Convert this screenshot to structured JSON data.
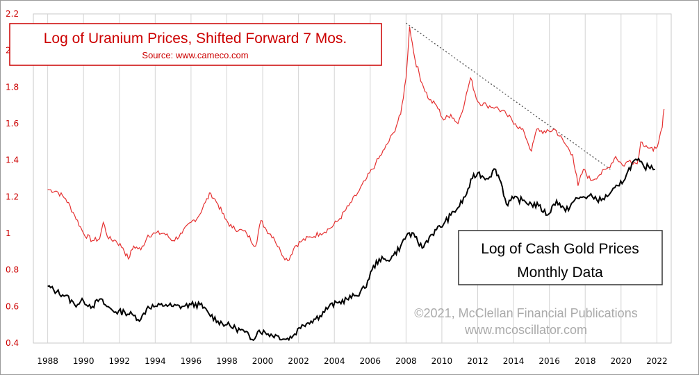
{
  "chart_data": {
    "type": "line",
    "title_top": "Log of Uranium Prices, Shifted Forward 7 Mos.",
    "subtitle_top": "Source: www.cameco.com",
    "box2_line1": "Log of Cash Gold Prices",
    "box2_line2": "Monthly Data",
    "copyright_line1": "©2021, McClellan Financial Publications",
    "copyright_line2": "www.mcoscillator.com",
    "x_ticks": [
      "1988",
      "1990",
      "1992",
      "1994",
      "1996",
      "1998",
      "2000",
      "2002",
      "2004",
      "2006",
      "2008",
      "2010",
      "2012",
      "2014",
      "2016",
      "2018",
      "2020",
      "2022"
    ],
    "y_ticks": [
      "0.4",
      "0.6",
      "0.8",
      "1",
      "1.2",
      "1.4",
      "1.6",
      "1.8",
      "2",
      "2.2"
    ],
    "xlim": [
      1987.2,
      2022.8
    ],
    "ylim": [
      0.4,
      2.2
    ],
    "grid": "vertical",
    "colors": {
      "uranium": "#e53030",
      "gold": "#000000",
      "axis_labels": "#cc0000",
      "trendline": "#555555"
    },
    "series": [
      {
        "key": "uranium",
        "values": [
          [
            1988.0,
            1.24
          ],
          [
            1988.5,
            1.23
          ],
          [
            1989.0,
            1.19
          ],
          [
            1989.5,
            1.1
          ],
          [
            1990.0,
            1.0
          ],
          [
            1990.5,
            0.96
          ],
          [
            1990.9,
            0.97
          ],
          [
            1991.1,
            1.06
          ],
          [
            1991.4,
            0.97
          ],
          [
            1991.8,
            0.96
          ],
          [
            1992.2,
            0.92
          ],
          [
            1992.5,
            0.86
          ],
          [
            1992.8,
            0.93
          ],
          [
            1993.2,
            0.91
          ],
          [
            1993.6,
            0.99
          ],
          [
            1994.0,
            1.0
          ],
          [
            1994.5,
            1.0
          ],
          [
            1995.0,
            0.96
          ],
          [
            1995.5,
            1.0
          ],
          [
            1996.0,
            1.06
          ],
          [
            1996.4,
            1.09
          ],
          [
            1996.8,
            1.17
          ],
          [
            1997.1,
            1.22
          ],
          [
            1997.5,
            1.16
          ],
          [
            1997.9,
            1.08
          ],
          [
            1998.3,
            1.03
          ],
          [
            1998.7,
            1.02
          ],
          [
            1999.1,
            1.0
          ],
          [
            1999.6,
            0.93
          ],
          [
            1999.9,
            1.07
          ],
          [
            2000.2,
            1.02
          ],
          [
            2000.6,
            0.98
          ],
          [
            2001.0,
            0.9
          ],
          [
            2001.4,
            0.85
          ],
          [
            2001.8,
            0.93
          ],
          [
            2002.2,
            0.96
          ],
          [
            2002.7,
            0.98
          ],
          [
            2003.2,
            1.0
          ],
          [
            2003.8,
            1.03
          ],
          [
            2004.3,
            1.08
          ],
          [
            2004.8,
            1.15
          ],
          [
            2005.3,
            1.22
          ],
          [
            2005.8,
            1.3
          ],
          [
            2006.3,
            1.38
          ],
          [
            2006.8,
            1.46
          ],
          [
            2007.3,
            1.55
          ],
          [
            2007.7,
            1.65
          ],
          [
            2008.0,
            1.85
          ],
          [
            2008.2,
            2.13
          ],
          [
            2008.5,
            1.95
          ],
          [
            2008.9,
            1.82
          ],
          [
            2009.3,
            1.73
          ],
          [
            2009.7,
            1.7
          ],
          [
            2010.1,
            1.62
          ],
          [
            2010.5,
            1.65
          ],
          [
            2010.9,
            1.6
          ],
          [
            2011.3,
            1.73
          ],
          [
            2011.6,
            1.85
          ],
          [
            2012.0,
            1.72
          ],
          [
            2012.5,
            1.7
          ],
          [
            2013.0,
            1.69
          ],
          [
            2013.6,
            1.65
          ],
          [
            2014.1,
            1.6
          ],
          [
            2014.6,
            1.55
          ],
          [
            2015.0,
            1.45
          ],
          [
            2015.3,
            1.57
          ],
          [
            2015.8,
            1.55
          ],
          [
            2016.3,
            1.57
          ],
          [
            2016.8,
            1.5
          ],
          [
            2017.3,
            1.43
          ],
          [
            2017.6,
            1.26
          ],
          [
            2017.9,
            1.35
          ],
          [
            2018.3,
            1.29
          ],
          [
            2018.8,
            1.32
          ],
          [
            2019.3,
            1.36
          ],
          [
            2019.7,
            1.42
          ],
          [
            2020.1,
            1.37
          ],
          [
            2020.5,
            1.4
          ],
          [
            2020.9,
            1.38
          ],
          [
            2021.1,
            1.5
          ],
          [
            2021.4,
            1.48
          ],
          [
            2021.8,
            1.45
          ],
          [
            2022.1,
            1.5
          ],
          [
            2022.3,
            1.58
          ],
          [
            2022.4,
            1.68
          ]
        ]
      },
      {
        "key": "gold",
        "values": [
          [
            1988.0,
            0.71
          ],
          [
            1988.5,
            0.68
          ],
          [
            1989.0,
            0.66
          ],
          [
            1989.5,
            0.61
          ],
          [
            1990.0,
            0.63
          ],
          [
            1990.5,
            0.6
          ],
          [
            1990.9,
            0.64
          ],
          [
            1991.3,
            0.6
          ],
          [
            1991.8,
            0.57
          ],
          [
            1992.3,
            0.57
          ],
          [
            1992.8,
            0.55
          ],
          [
            1993.2,
            0.53
          ],
          [
            1993.6,
            0.6
          ],
          [
            1994.1,
            0.6
          ],
          [
            1994.6,
            0.61
          ],
          [
            1995.0,
            0.6
          ],
          [
            1995.5,
            0.6
          ],
          [
            1996.0,
            0.61
          ],
          [
            1996.5,
            0.61
          ],
          [
            1997.0,
            0.56
          ],
          [
            1997.5,
            0.52
          ],
          [
            1998.0,
            0.5
          ],
          [
            1998.5,
            0.48
          ],
          [
            1999.0,
            0.46
          ],
          [
            1999.4,
            0.42
          ],
          [
            1999.8,
            0.47
          ],
          [
            2000.3,
            0.45
          ],
          [
            2000.8,
            0.44
          ],
          [
            2001.3,
            0.42
          ],
          [
            2001.7,
            0.44
          ],
          [
            2002.2,
            0.5
          ],
          [
            2002.7,
            0.52
          ],
          [
            2003.2,
            0.55
          ],
          [
            2003.7,
            0.6
          ],
          [
            2004.2,
            0.62
          ],
          [
            2004.7,
            0.64
          ],
          [
            2005.2,
            0.66
          ],
          [
            2005.7,
            0.7
          ],
          [
            2006.1,
            0.8
          ],
          [
            2006.5,
            0.86
          ],
          [
            2006.9,
            0.85
          ],
          [
            2007.3,
            0.88
          ],
          [
            2007.7,
            0.93
          ],
          [
            2008.1,
            1.0
          ],
          [
            2008.5,
            0.98
          ],
          [
            2008.9,
            0.92
          ],
          [
            2009.3,
            0.98
          ],
          [
            2009.7,
            1.02
          ],
          [
            2010.1,
            1.05
          ],
          [
            2010.5,
            1.1
          ],
          [
            2010.9,
            1.14
          ],
          [
            2011.3,
            1.2
          ],
          [
            2011.7,
            1.3
          ],
          [
            2012.0,
            1.33
          ],
          [
            2012.5,
            1.3
          ],
          [
            2013.0,
            1.35
          ],
          [
            2013.3,
            1.28
          ],
          [
            2013.6,
            1.16
          ],
          [
            2014.0,
            1.19
          ],
          [
            2014.5,
            1.18
          ],
          [
            2015.0,
            1.16
          ],
          [
            2015.4,
            1.15
          ],
          [
            2015.9,
            1.1
          ],
          [
            2016.4,
            1.18
          ],
          [
            2016.9,
            1.12
          ],
          [
            2017.4,
            1.18
          ],
          [
            2017.9,
            1.2
          ],
          [
            2018.4,
            1.2
          ],
          [
            2018.9,
            1.18
          ],
          [
            2019.4,
            1.22
          ],
          [
            2019.9,
            1.26
          ],
          [
            2020.3,
            1.32
          ],
          [
            2020.6,
            1.38
          ],
          [
            2020.9,
            1.4
          ],
          [
            2021.3,
            1.36
          ],
          [
            2021.7,
            1.37
          ],
          [
            2021.9,
            1.35
          ]
        ]
      }
    ],
    "trendline": [
      [
        2008.0,
        2.15
      ],
      [
        2019.4,
        1.35
      ]
    ]
  }
}
